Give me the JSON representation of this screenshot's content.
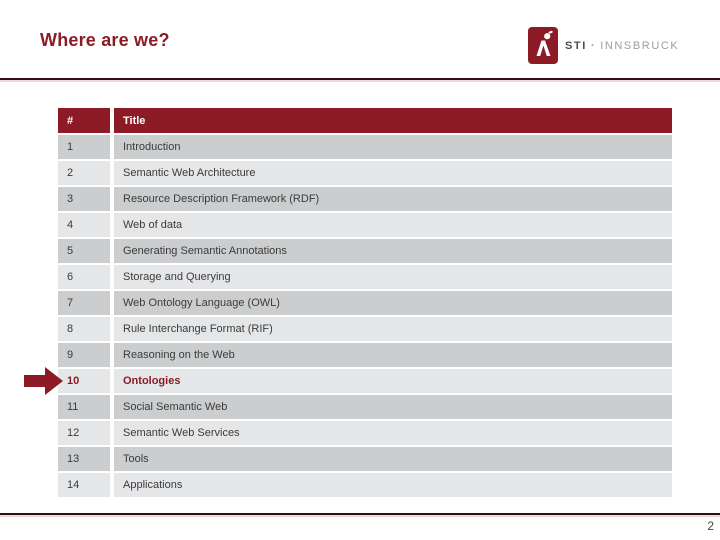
{
  "slide": {
    "title": "Where are we?",
    "page_number": "2"
  },
  "logo": {
    "icon": "sti-person-icon",
    "text_primary": "STI",
    "separator": "·",
    "text_secondary": "INNSBRUCK"
  },
  "colors": {
    "accent": "#8C1B26",
    "header_bg": "#8C1B26",
    "row_odd": "#CBCDCF",
    "row_even": "#E5E6E8",
    "divider_dark": "#360D12",
    "divider_light": "#EFD9DB"
  },
  "table": {
    "columns": [
      "#",
      "Title"
    ],
    "highlighted_row": "10",
    "rows": [
      {
        "num": "1",
        "title": "Introduction",
        "highlight": false
      },
      {
        "num": "2",
        "title": "Semantic Web Architecture",
        "highlight": false
      },
      {
        "num": "3",
        "title": "Resource Description Framework (RDF)",
        "highlight": false
      },
      {
        "num": "4",
        "title": "Web of data",
        "highlight": false
      },
      {
        "num": "5",
        "title": "Generating Semantic Annotations",
        "highlight": false
      },
      {
        "num": "6",
        "title": "Storage and Querying",
        "highlight": false
      },
      {
        "num": "7",
        "title": "Web Ontology Language (OWL)",
        "highlight": false
      },
      {
        "num": "8",
        "title": "Rule Interchange Format (RIF)",
        "highlight": false
      },
      {
        "num": "9",
        "title": "Reasoning on the Web",
        "highlight": false
      },
      {
        "num": "10",
        "title": "Ontologies",
        "highlight": true
      },
      {
        "num": "11",
        "title": "Social Semantic Web",
        "highlight": false
      },
      {
        "num": "12",
        "title": "Semantic Web Services",
        "highlight": false
      },
      {
        "num": "13",
        "title": "Tools",
        "highlight": false
      },
      {
        "num": "14",
        "title": "Applications",
        "highlight": false
      }
    ]
  }
}
